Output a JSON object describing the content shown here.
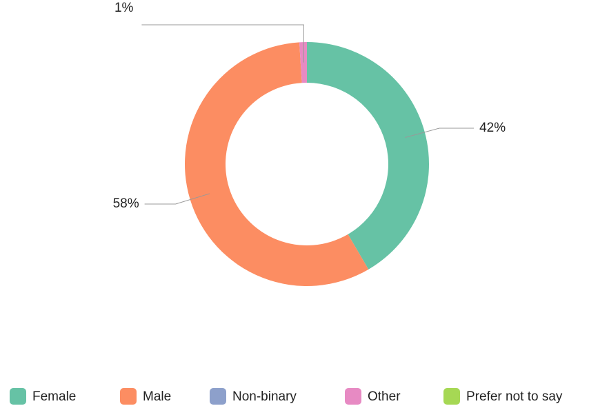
{
  "chart_data": {
    "type": "pie",
    "donut": true,
    "categories": [
      "Female",
      "Male",
      "Non-binary",
      "Other",
      "Prefer not to say"
    ],
    "values": [
      42,
      58,
      0,
      1,
      0
    ],
    "value_labels": [
      "42%",
      "58%",
      null,
      "1%",
      null
    ],
    "colors": [
      "#66c2a5",
      "#fc8d62",
      "#8da0cb",
      "#e78ac3",
      "#a6d854"
    ],
    "legend": "bottom"
  }
}
